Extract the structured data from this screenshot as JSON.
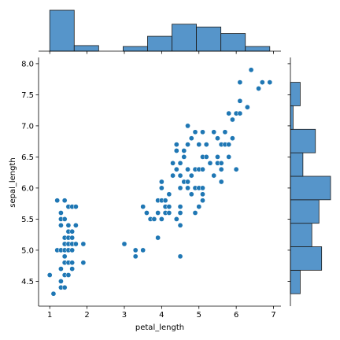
{
  "chart_data": {
    "type": "scatter",
    "subtype": "jointplot",
    "xlabel": "petal_length",
    "ylabel": "sepal_length",
    "xlim": [
      0.7,
      7.2
    ],
    "ylim": [
      4.1,
      8.1
    ],
    "x_ticks": [
      1,
      2,
      3,
      4,
      5,
      6,
      7
    ],
    "y_ticks": [
      4.5,
      5.0,
      5.5,
      6.0,
      6.5,
      7.0,
      7.5,
      8.0
    ],
    "points": [
      [
        1.0,
        4.6
      ],
      [
        1.1,
        4.3
      ],
      [
        1.2,
        5.0
      ],
      [
        1.2,
        5.8
      ],
      [
        1.3,
        4.4
      ],
      [
        1.3,
        4.5
      ],
      [
        1.3,
        4.7
      ],
      [
        1.3,
        5.0
      ],
      [
        1.3,
        5.4
      ],
      [
        1.3,
        5.5
      ],
      [
        1.3,
        5.6
      ],
      [
        1.4,
        4.4
      ],
      [
        1.4,
        4.6
      ],
      [
        1.4,
        4.8
      ],
      [
        1.4,
        4.9
      ],
      [
        1.4,
        5.0
      ],
      [
        1.4,
        5.1
      ],
      [
        1.4,
        5.2
      ],
      [
        1.4,
        5.5
      ],
      [
        1.4,
        5.8
      ],
      [
        1.5,
        4.6
      ],
      [
        1.5,
        4.8
      ],
      [
        1.5,
        5.0
      ],
      [
        1.5,
        5.1
      ],
      [
        1.5,
        5.2
      ],
      [
        1.5,
        5.3
      ],
      [
        1.5,
        5.4
      ],
      [
        1.5,
        5.7
      ],
      [
        1.6,
        4.7
      ],
      [
        1.6,
        4.8
      ],
      [
        1.6,
        5.0
      ],
      [
        1.6,
        5.1
      ],
      [
        1.6,
        5.2
      ],
      [
        1.6,
        5.3
      ],
      [
        1.6,
        5.7
      ],
      [
        1.7,
        5.1
      ],
      [
        1.7,
        5.4
      ],
      [
        1.7,
        5.7
      ],
      [
        1.9,
        4.8
      ],
      [
        1.9,
        5.1
      ],
      [
        3.0,
        5.1
      ],
      [
        3.3,
        4.9
      ],
      [
        3.3,
        5.0
      ],
      [
        3.5,
        5.0
      ],
      [
        3.5,
        5.7
      ],
      [
        3.6,
        5.6
      ],
      [
        3.7,
        5.5
      ],
      [
        3.8,
        5.5
      ],
      [
        3.9,
        5.6
      ],
      [
        3.9,
        5.8
      ],
      [
        3.9,
        5.2
      ],
      [
        4.0,
        5.5
      ],
      [
        4.0,
        5.8
      ],
      [
        4.0,
        6.0
      ],
      [
        4.0,
        6.1
      ],
      [
        4.1,
        5.6
      ],
      [
        4.1,
        5.8
      ],
      [
        4.1,
        5.7
      ],
      [
        4.2,
        5.6
      ],
      [
        4.2,
        5.7
      ],
      [
        4.2,
        5.9
      ],
      [
        4.3,
        6.2
      ],
      [
        4.3,
        6.4
      ],
      [
        4.4,
        6.3
      ],
      [
        4.4,
        6.6
      ],
      [
        4.4,
        6.7
      ],
      [
        4.4,
        5.5
      ],
      [
        4.5,
        4.9
      ],
      [
        4.5,
        5.4
      ],
      [
        4.5,
        5.6
      ],
      [
        4.5,
        5.7
      ],
      [
        4.5,
        6.0
      ],
      [
        4.5,
        6.2
      ],
      [
        4.5,
        6.4
      ],
      [
        4.6,
        6.1
      ],
      [
        4.6,
        6.5
      ],
      [
        4.6,
        6.6
      ],
      [
        4.7,
        6.0
      ],
      [
        4.7,
        6.1
      ],
      [
        4.7,
        6.3
      ],
      [
        4.7,
        6.7
      ],
      [
        4.7,
        7.0
      ],
      [
        4.8,
        5.9
      ],
      [
        4.8,
        6.2
      ],
      [
        4.8,
        6.8
      ],
      [
        4.9,
        5.6
      ],
      [
        4.9,
        6.0
      ],
      [
        4.9,
        6.3
      ],
      [
        4.9,
        6.9
      ],
      [
        5.0,
        5.7
      ],
      [
        5.0,
        6.0
      ],
      [
        5.0,
        6.3
      ],
      [
        5.0,
        6.7
      ],
      [
        5.1,
        5.8
      ],
      [
        5.1,
        5.9
      ],
      [
        5.1,
        6.0
      ],
      [
        5.1,
        6.3
      ],
      [
        5.1,
        6.5
      ],
      [
        5.1,
        6.9
      ],
      [
        5.2,
        6.5
      ],
      [
        5.2,
        6.7
      ],
      [
        5.3,
        6.4
      ],
      [
        5.4,
        6.2
      ],
      [
        5.4,
        6.9
      ],
      [
        5.5,
        6.4
      ],
      [
        5.5,
        6.5
      ],
      [
        5.5,
        6.8
      ],
      [
        5.6,
        6.1
      ],
      [
        5.6,
        6.3
      ],
      [
        5.6,
        6.4
      ],
      [
        5.6,
        6.7
      ],
      [
        5.7,
        6.7
      ],
      [
        5.7,
        6.9
      ],
      [
        5.8,
        6.5
      ],
      [
        5.8,
        6.7
      ],
      [
        5.8,
        7.2
      ],
      [
        5.9,
        6.8
      ],
      [
        5.9,
        7.1
      ],
      [
        6.0,
        6.3
      ],
      [
        6.0,
        7.2
      ],
      [
        6.1,
        7.2
      ],
      [
        6.1,
        7.4
      ],
      [
        6.1,
        7.7
      ],
      [
        6.3,
        7.3
      ],
      [
        6.4,
        7.9
      ],
      [
        6.6,
        7.6
      ],
      [
        6.7,
        7.7
      ],
      [
        6.9,
        7.7
      ]
    ],
    "marginal_x": {
      "bin_edges": [
        1.0,
        1.6556,
        2.3111,
        2.9667,
        3.6222,
        4.2778,
        4.9333,
        5.5889,
        6.2444,
        6.9
      ],
      "counts": [
        44,
        6,
        0,
        5,
        16,
        29,
        26,
        19,
        5
      ]
    },
    "marginal_y": {
      "bin_edges": [
        4.3,
        4.6778,
        5.0556,
        5.4333,
        5.8111,
        6.1889,
        6.5667,
        6.9444,
        7.3222,
        7.7
      ],
      "counts": [
        11,
        35,
        24,
        32,
        45,
        14,
        28,
        3,
        11
      ]
    }
  }
}
